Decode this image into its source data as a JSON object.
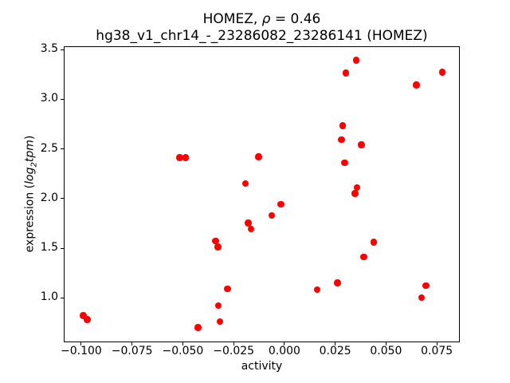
{
  "chart_data": {
    "type": "scatter",
    "title": {
      "line1_pre": "HOMEZ, ",
      "line1_rho": "ρ",
      "line1_post": " = 0.46",
      "line2": "hg38_v1_chr14_-_23286082_23286141 (HOMEZ)"
    },
    "rho_value": 0.46,
    "xlabel": "activity",
    "ylabel": {
      "pre": "expression (",
      "math_main": "log",
      "math_sub": "2",
      "math_tail": "tpm",
      "post": ")"
    },
    "marker_color": "#ff0000",
    "axis_color": "#000000",
    "marker_diameter_px": 8.5,
    "grid": false,
    "legend": "none",
    "xlim": [
      -0.1086,
      0.0863
    ],
    "ylim": [
      0.557,
      3.537
    ],
    "x_ticks": [
      -0.1,
      -0.075,
      -0.05,
      -0.025,
      0.0,
      0.025,
      0.05,
      0.075
    ],
    "x_tick_labels": [
      "−0.100",
      "−0.075",
      "−0.050",
      "−0.025",
      "0.000",
      "0.025",
      "0.050",
      "0.075"
    ],
    "y_ticks": [
      1.0,
      1.5,
      2.0,
      2.5,
      3.0,
      3.5
    ],
    "y_tick_labels": [
      "1.0",
      "1.5",
      "2.0",
      "2.5",
      "3.0",
      "3.5"
    ],
    "points": [
      [
        -0.0994,
        0.83
      ],
      [
        -0.0975,
        0.79
      ],
      [
        -0.052,
        2.42
      ],
      [
        -0.049,
        2.42
      ],
      [
        -0.043,
        0.71
      ],
      [
        -0.0343,
        1.58
      ],
      [
        -0.0331,
        1.52
      ],
      [
        -0.033,
        0.93
      ],
      [
        -0.0322,
        0.77
      ],
      [
        -0.0285,
        1.1
      ],
      [
        -0.0196,
        2.16
      ],
      [
        -0.0183,
        1.76
      ],
      [
        -0.0168,
        1.7
      ],
      [
        -0.0131,
        2.43
      ],
      [
        -0.0067,
        1.84
      ],
      [
        -0.0022,
        1.95
      ],
      [
        0.0157,
        1.09
      ],
      [
        0.0258,
        1.16
      ],
      [
        0.0276,
        2.6
      ],
      [
        0.0283,
        2.74
      ],
      [
        0.0292,
        2.37
      ],
      [
        0.0299,
        3.27
      ],
      [
        0.0344,
        2.06
      ],
      [
        0.035,
        3.4
      ],
      [
        0.0353,
        2.12
      ],
      [
        0.0375,
        2.55
      ],
      [
        0.0386,
        1.42
      ],
      [
        0.0436,
        1.57
      ],
      [
        0.0645,
        3.15
      ],
      [
        0.0671,
        1.01
      ],
      [
        0.0693,
        1.13
      ],
      [
        0.0772,
        3.28
      ]
    ]
  }
}
